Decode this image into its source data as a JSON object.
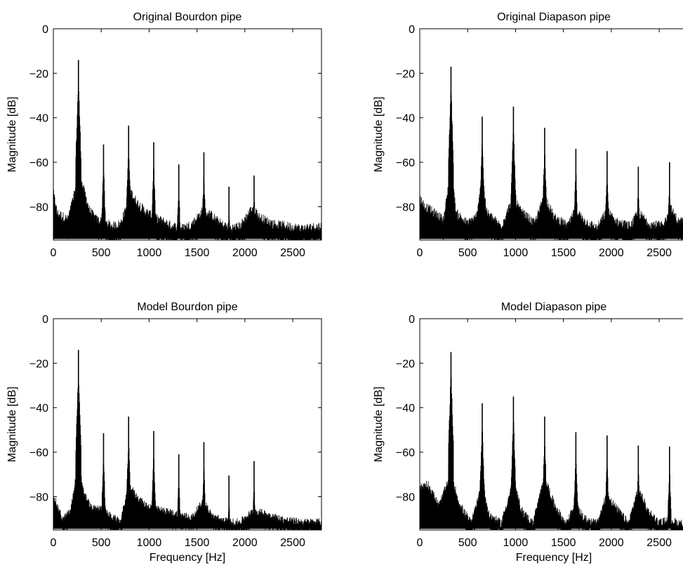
{
  "chart_data": [
    {
      "id": "orig-bourdon",
      "type": "line",
      "title": "Original Bourdon pipe",
      "xlabel": "",
      "ylabel": "Magnitude [dB]",
      "xlim": [
        0,
        2800
      ],
      "ylim": [
        -95,
        0
      ],
      "xticks": [
        0,
        500,
        1000,
        1500,
        2000,
        2500
      ],
      "yticks": [
        0,
        -20,
        -40,
        -60,
        -80
      ],
      "grid": false,
      "series": [
        {
          "peaks": [
            [
              262,
              -14
            ],
            [
              524,
              -52
            ],
            [
              786,
              -43.5
            ],
            [
              1048,
              -51
            ],
            [
              1310,
              -61
            ],
            [
              1572,
              -55.5
            ],
            [
              1834,
              -71
            ],
            [
              2096,
              -66
            ]
          ],
          "floor": [
            [
              0,
              -76
            ],
            [
              40,
              -85
            ],
            [
              150,
              -88
            ],
            [
              230,
              -75
            ],
            [
              262,
              -55
            ],
            [
              300,
              -72
            ],
            [
              380,
              -84
            ],
            [
              450,
              -88
            ],
            [
              520,
              -89
            ],
            [
              620,
              -91
            ],
            [
              700,
              -90
            ],
            [
              760,
              -83
            ],
            [
              800,
              -75
            ],
            [
              870,
              -80
            ],
            [
              950,
              -84
            ],
            [
              1050,
              -87
            ],
            [
              1150,
              -89
            ],
            [
              1250,
              -91
            ],
            [
              1350,
              -92
            ],
            [
              1450,
              -90
            ],
            [
              1560,
              -84
            ],
            [
              1650,
              -86
            ],
            [
              1750,
              -90
            ],
            [
              1850,
              -92
            ],
            [
              1950,
              -91
            ],
            [
              2090,
              -82
            ],
            [
              2150,
              -87
            ],
            [
              2300,
              -90
            ],
            [
              2450,
              -91
            ],
            [
              2600,
              -92
            ],
            [
              2800,
              -91
            ]
          ],
          "noise": 8
        }
      ]
    },
    {
      "id": "orig-diapason",
      "type": "line",
      "title": "Original Diapason pipe",
      "xlabel": "",
      "ylabel": "Magnitude [dB]",
      "xlim": [
        0,
        2800
      ],
      "ylim": [
        -95,
        0
      ],
      "xticks": [
        0,
        500,
        1000,
        1500,
        2000,
        2500
      ],
      "yticks": [
        0,
        -20,
        -40,
        -60,
        -80
      ],
      "grid": false,
      "series": [
        {
          "peaks": [
            [
              326,
              -17
            ],
            [
              652,
              -39.5
            ],
            [
              978,
              -35
            ],
            [
              1304,
              -44.5
            ],
            [
              1630,
              -54
            ],
            [
              1956,
              -55
            ],
            [
              2282,
              -62
            ],
            [
              2608,
              -60
            ]
          ],
          "floor": [
            [
              0,
              -78
            ],
            [
              50,
              -82
            ],
            [
              150,
              -85
            ],
            [
              250,
              -88
            ],
            [
              326,
              -65
            ],
            [
              380,
              -85
            ],
            [
              500,
              -90
            ],
            [
              600,
              -86
            ],
            [
              652,
              -68
            ],
            [
              700,
              -85
            ],
            [
              850,
              -91
            ],
            [
              978,
              -78
            ],
            [
              1050,
              -84
            ],
            [
              1200,
              -90
            ],
            [
              1304,
              -77
            ],
            [
              1400,
              -87
            ],
            [
              1550,
              -91
            ],
            [
              1630,
              -83
            ],
            [
              1700,
              -88
            ],
            [
              1850,
              -92
            ],
            [
              1956,
              -84
            ],
            [
              2050,
              -89
            ],
            [
              2200,
              -91
            ],
            [
              2282,
              -85
            ],
            [
              2400,
              -90
            ],
            [
              2550,
              -91
            ],
            [
              2608,
              -82
            ],
            [
              2700,
              -89
            ],
            [
              2800,
              -88
            ]
          ],
          "noise": 8
        }
      ]
    },
    {
      "id": "model-bourdon",
      "type": "line",
      "title": "Model Bourdon pipe",
      "xlabel": "Frequency [Hz]",
      "ylabel": "Magnitude [dB]",
      "xlim": [
        0,
        2800
      ],
      "ylim": [
        -95,
        0
      ],
      "xticks": [
        0,
        500,
        1000,
        1500,
        2000,
        2500
      ],
      "yticks": [
        0,
        -20,
        -40,
        -60,
        -80
      ],
      "grid": false,
      "series": [
        {
          "peaks": [
            [
              262,
              -14
            ],
            [
              524,
              -51.5
            ],
            [
              786,
              -44
            ],
            [
              1048,
              -50.5
            ],
            [
              1310,
              -61
            ],
            [
              1572,
              -55.5
            ],
            [
              1834,
              -70.5
            ],
            [
              2096,
              -64
            ]
          ],
          "floor": [
            [
              0,
              -80
            ],
            [
              40,
              -86
            ],
            [
              100,
              -92
            ],
            [
              180,
              -88
            ],
            [
              262,
              -66
            ],
            [
              320,
              -80
            ],
            [
              400,
              -87
            ],
            [
              500,
              -87
            ],
            [
              620,
              -91
            ],
            [
              700,
              -93
            ],
            [
              790,
              -76
            ],
            [
              860,
              -81
            ],
            [
              950,
              -85
            ],
            [
              1050,
              -87
            ],
            [
              1150,
              -88
            ],
            [
              1250,
              -89
            ],
            [
              1350,
              -90
            ],
            [
              1450,
              -91
            ],
            [
              1572,
              -83
            ],
            [
              1650,
              -90
            ],
            [
              1750,
              -92
            ],
            [
              1850,
              -93
            ],
            [
              1950,
              -93
            ],
            [
              2090,
              -88
            ],
            [
              2200,
              -89
            ],
            [
              2400,
              -92
            ],
            [
              2600,
              -93
            ],
            [
              2800,
              -93
            ]
          ],
          "noise": 6
        }
      ]
    },
    {
      "id": "model-diapason",
      "type": "line",
      "title": "Model Diapason pipe",
      "xlabel": "Frequency [Hz]",
      "ylabel": "Magnitude [dB]",
      "xlim": [
        0,
        2800
      ],
      "ylim": [
        -95,
        0
      ],
      "xticks": [
        0,
        500,
        1000,
        1500,
        2000,
        2500
      ],
      "yticks": [
        0,
        -20,
        -40,
        -60,
        -80
      ],
      "grid": false,
      "series": [
        {
          "peaks": [
            [
              326,
              -15
            ],
            [
              652,
              -38
            ],
            [
              978,
              -35
            ],
            [
              1304,
              -44
            ],
            [
              1630,
              -51
            ],
            [
              1956,
              -52.5
            ],
            [
              2282,
              -57
            ],
            [
              2608,
              -57.5
            ]
          ],
          "floor": [
            [
              0,
              -78
            ],
            [
              80,
              -76
            ],
            [
              200,
              -86
            ],
            [
              326,
              -72
            ],
            [
              420,
              -86
            ],
            [
              540,
              -94
            ],
            [
              652,
              -75
            ],
            [
              720,
              -90
            ],
            [
              850,
              -94
            ],
            [
              978,
              -75
            ],
            [
              1060,
              -88
            ],
            [
              1180,
              -94
            ],
            [
              1304,
              -73
            ],
            [
              1400,
              -85
            ],
            [
              1520,
              -94
            ],
            [
              1630,
              -86
            ],
            [
              1720,
              -92
            ],
            [
              1850,
              -94
            ],
            [
              1956,
              -81
            ],
            [
              2050,
              -87
            ],
            [
              2180,
              -94
            ],
            [
              2282,
              -78
            ],
            [
              2380,
              -88
            ],
            [
              2500,
              -94
            ],
            [
              2608,
              -92
            ],
            [
              2700,
              -94
            ],
            [
              2800,
              -94
            ]
          ],
          "noise": 7
        }
      ]
    }
  ]
}
